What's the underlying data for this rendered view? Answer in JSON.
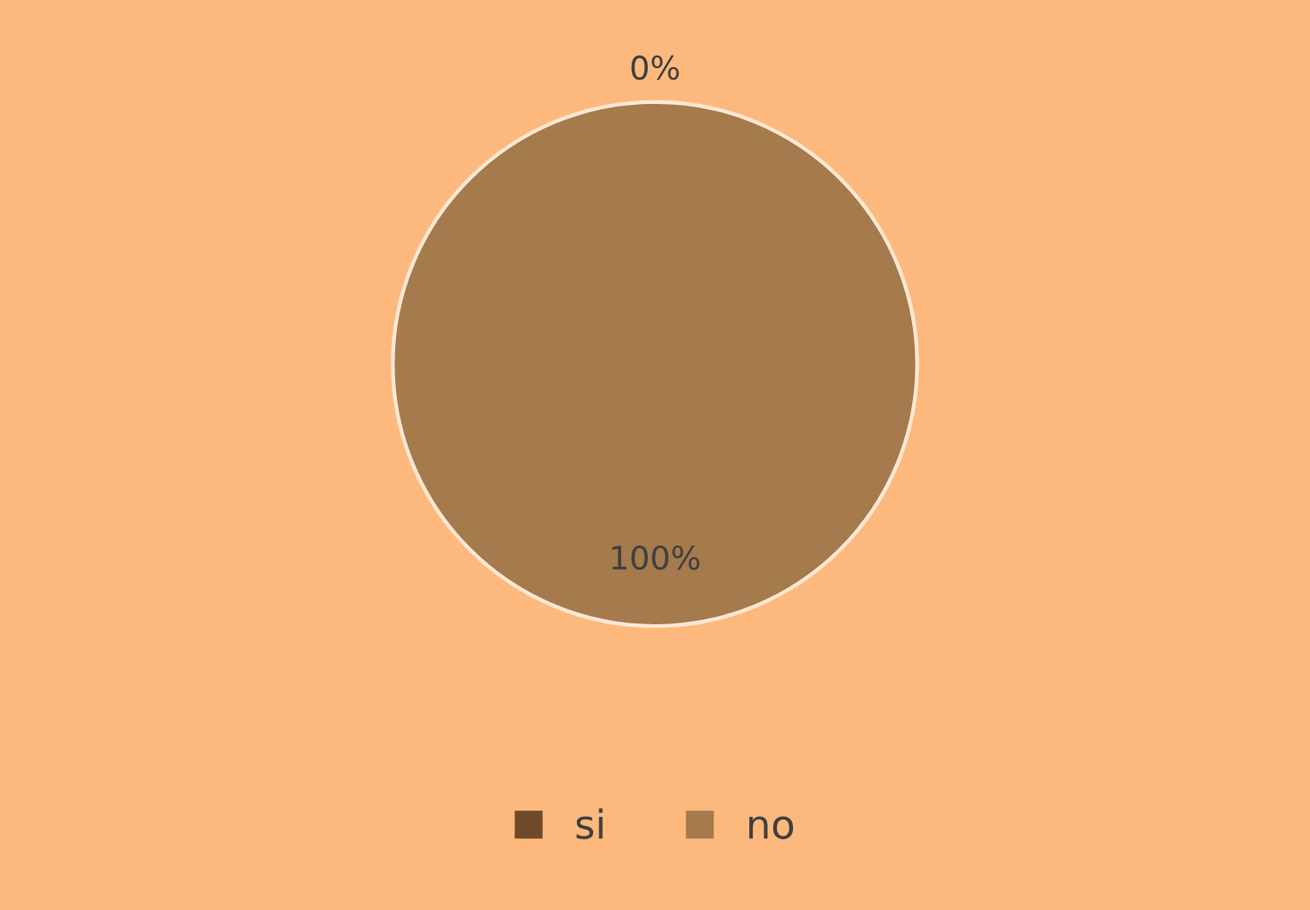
{
  "chart_data": {
    "type": "pie",
    "categories": [
      "si",
      "no"
    ],
    "values": [
      0,
      100
    ],
    "colors": [
      "#6e4a2a",
      "#a57a4c"
    ],
    "value_labels": [
      "0%",
      "100%"
    ],
    "legend": "bottom"
  }
}
